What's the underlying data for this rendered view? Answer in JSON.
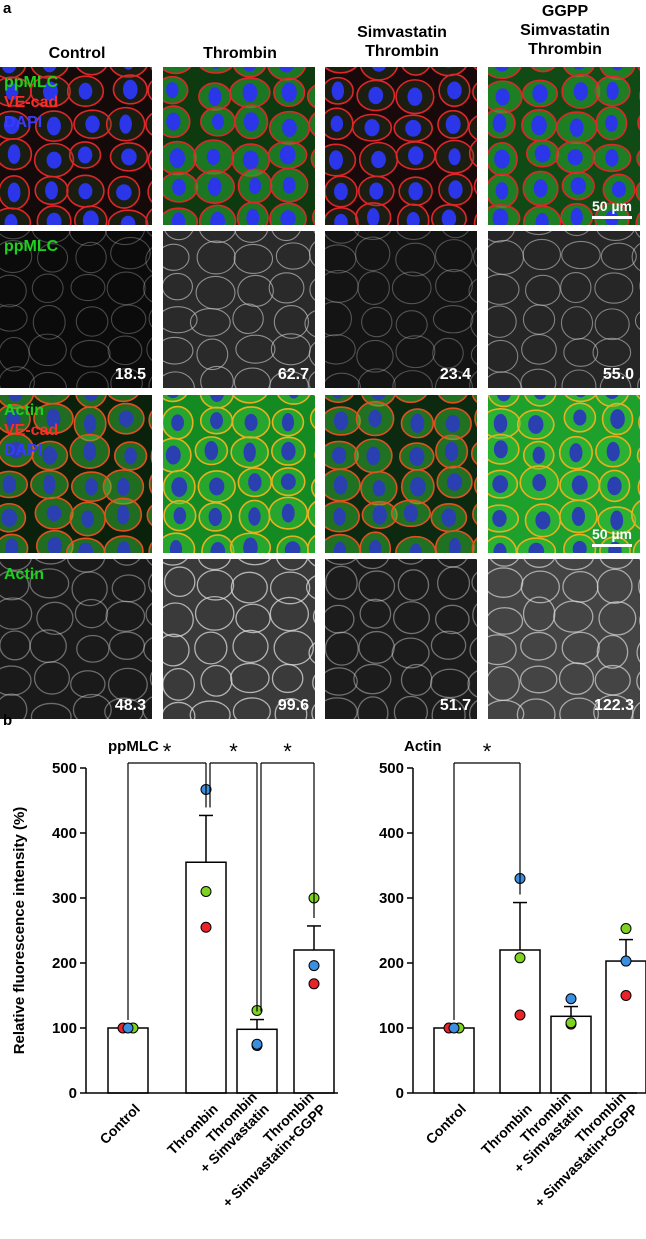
{
  "panel_a": {
    "letter": "a",
    "columns": [
      "Control",
      "Thrombin",
      "Simvastatin\nThrombin",
      "GGPP\nSimvastatin\nThrombin"
    ],
    "row1_labels": [
      "ppMLC",
      "VE-cad",
      "DAPI"
    ],
    "row2_label": "ppMLC",
    "row2_values": [
      "18.5",
      "62.7",
      "23.4",
      "55.0"
    ],
    "row3_labels": [
      "Actin",
      "VE-cad",
      "DAPI"
    ],
    "row4_label": "Actin",
    "row4_values": [
      "48.3",
      "99.6",
      "51.7",
      "122.3"
    ],
    "scale_bar": "50 µm",
    "colors": {
      "green": "#1fd11f",
      "red": "#ff2a2a",
      "blue": "#3a3aff"
    }
  },
  "panel_b": {
    "letter": "b"
  },
  "chart_data": [
    {
      "type": "bar",
      "title": "ppMLC",
      "ylabel": "Relative fluorescence intensity (%)",
      "ylim": [
        0,
        500
      ],
      "yticks": [
        0,
        100,
        200,
        300,
        400,
        500
      ],
      "categories": [
        "Control",
        "Thrombin",
        "Thrombin\n+ Simvastatin",
        "Thrombin\n+ Simvastatin+GGPP"
      ],
      "values": [
        100,
        355,
        98,
        220
      ],
      "errors": [
        0,
        72,
        15,
        37
      ],
      "points": [
        {
          "red": 100,
          "green": 100,
          "blue": 100
        },
        {
          "red": 255,
          "green": 310,
          "blue": 467
        },
        {
          "red": 73,
          "green": 127,
          "blue": 75
        },
        {
          "red": 168,
          "green": 300,
          "blue": 196
        }
      ],
      "significance": [
        {
          "from": 0,
          "to": 1,
          "label": "*"
        },
        {
          "from": 1,
          "to": 2,
          "label": "*"
        },
        {
          "from": 2,
          "to": 3,
          "label": "*"
        }
      ],
      "point_colors": {
        "red": "#e8242a",
        "green": "#7ed321",
        "blue": "#3a8fe0"
      }
    },
    {
      "type": "bar",
      "title": "Actin",
      "ylabel": "",
      "ylim": [
        0,
        500
      ],
      "yticks": [
        0,
        100,
        200,
        300,
        400,
        500
      ],
      "categories": [
        "Control",
        "Thrombin",
        "Thrombin\n+ Simvastatin",
        "Thrombin\n+ Simvastatin+GGPP"
      ],
      "values": [
        100,
        220,
        118,
        203
      ],
      "errors": [
        0,
        73,
        15,
        33
      ],
      "points": [
        {
          "red": 100,
          "green": 100,
          "blue": 100
        },
        {
          "red": 120,
          "green": 208,
          "blue": 330
        },
        {
          "red": 106,
          "green": 108,
          "blue": 145
        },
        {
          "red": 150,
          "green": 253,
          "blue": 203
        }
      ],
      "significance": [
        {
          "from": 0,
          "to": 1,
          "label": "*"
        }
      ],
      "point_colors": {
        "red": "#e8242a",
        "green": "#7ed321",
        "blue": "#3a8fe0"
      }
    }
  ]
}
